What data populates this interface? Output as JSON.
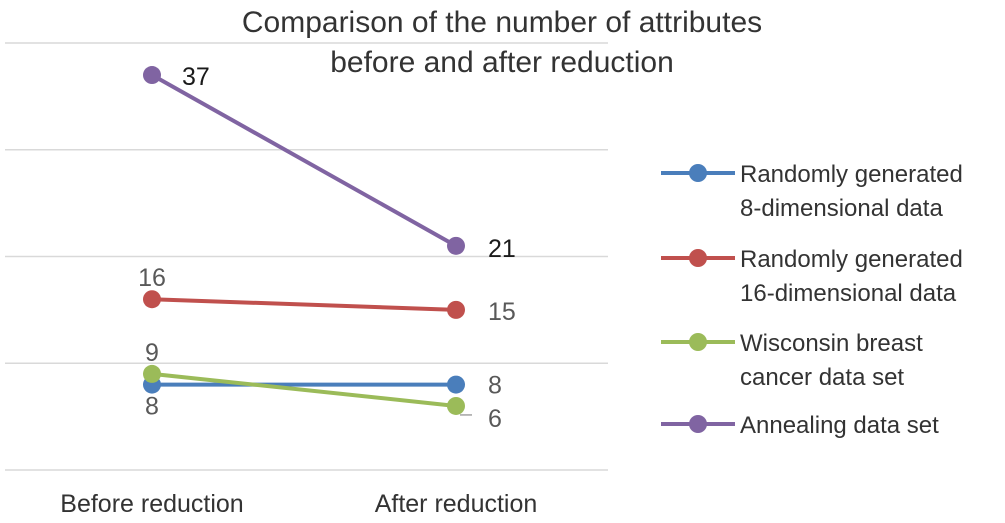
{
  "chart_data": {
    "type": "line",
    "title": [
      "Comparison of the number of attributes",
      "before and after reduction"
    ],
    "categories": [
      "Before reduction",
      "After reduction"
    ],
    "ylim": [
      0,
      40
    ],
    "grid": true,
    "legend_position": "right",
    "series": [
      {
        "name": [
          "Randomly generated",
          "8-dimensional data"
        ],
        "values": [
          8,
          8
        ],
        "color": "#4A7EBB",
        "label_color": "#595959"
      },
      {
        "name": [
          "Randomly generated",
          "16-dimensional data"
        ],
        "values": [
          16,
          15
        ],
        "color": "#C0504D",
        "label_color": "#595959"
      },
      {
        "name": [
          "Wisconsin breast",
          "cancer data set"
        ],
        "values": [
          9,
          6
        ],
        "color": "#9BBB59",
        "label_color": "#595959"
      },
      {
        "name": [
          "Annealing data set"
        ],
        "values": [
          37,
          21
        ],
        "color": "#8064A2",
        "label_color": "#1a1a1a"
      }
    ],
    "gridline_color": "#D9D9D9"
  }
}
